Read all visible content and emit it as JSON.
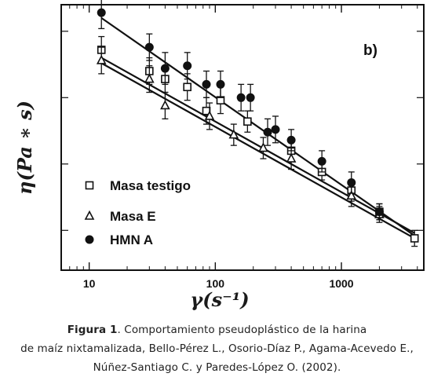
{
  "chart_data": {
    "type": "scatter",
    "panel_label": "b)",
    "xlabel": "γ(s⁻¹)",
    "ylabel": "η(Pa ∗ s)",
    "x_scale": "log",
    "y_scale": "log",
    "xlim": [
      6,
      4500
    ],
    "x_ticks": [
      10,
      100,
      1000
    ],
    "x_tick_labels": [
      "10",
      "100",
      "1000"
    ],
    "legend_position": "bottom-left",
    "grid": false,
    "series": [
      {
        "name": "Masa testigo",
        "marker": "open-square",
        "x": [
          12.5,
          30,
          40,
          60,
          85,
          110,
          180,
          400,
          700,
          1200,
          2000,
          3800
        ],
        "y": [
          0.83,
          0.75,
          0.72,
          0.69,
          0.6,
          0.64,
          0.56,
          0.45,
          0.37,
          0.3,
          0.22,
          0.12
        ],
        "err": [
          0.05,
          0.05,
          0.05,
          0.05,
          0.05,
          0.05,
          0.04,
          0.04,
          0.03,
          0.04,
          0.03,
          0.03
        ]
      },
      {
        "name": "Masa E",
        "marker": "open-triangle",
        "x": [
          12.5,
          30,
          40,
          90,
          140,
          240,
          400,
          1200,
          2000
        ],
        "y": [
          0.79,
          0.72,
          0.62,
          0.58,
          0.51,
          0.46,
          0.42,
          0.28,
          0.21
        ],
        "err": [
          0.05,
          0.05,
          0.05,
          0.05,
          0.04,
          0.04,
          0.04,
          0.04,
          0.03
        ]
      },
      {
        "name": "HMN A",
        "marker": "filled-circle",
        "x": [
          12.5,
          30,
          40,
          60,
          85,
          110,
          160,
          190,
          260,
          300,
          400,
          700,
          1200,
          2000
        ],
        "y": [
          0.97,
          0.84,
          0.76,
          0.77,
          0.7,
          0.7,
          0.65,
          0.65,
          0.52,
          0.53,
          0.49,
          0.41,
          0.33,
          0.22
        ],
        "err": [
          0.06,
          0.05,
          0.06,
          0.05,
          0.05,
          0.05,
          0.05,
          0.05,
          0.05,
          0.05,
          0.04,
          0.04,
          0.04,
          0.03
        ]
      }
    ],
    "fits": [
      {
        "series": "HMN A",
        "x": [
          12.5,
          3800
        ],
        "y": [
          0.95,
          0.13
        ]
      },
      {
        "series": "Masa testigo",
        "x": [
          12.5,
          3800
        ],
        "y": [
          0.78,
          0.12
        ]
      },
      {
        "series": "Masa E",
        "x": [
          12.5,
          3800
        ],
        "y": [
          0.8,
          0.14
        ]
      }
    ]
  },
  "caption": {
    "fig_label": "Figura 1",
    "line1_rest": ". Comportamiento pseudoplástico de la harina",
    "line2": "de maíz nixtamalizada, Bello-Pérez L., Osorio-Díaz P., Agama-Acevedo E.,",
    "line3": "Núñez-Santiago C. y Paredes-López O. (2002)."
  }
}
